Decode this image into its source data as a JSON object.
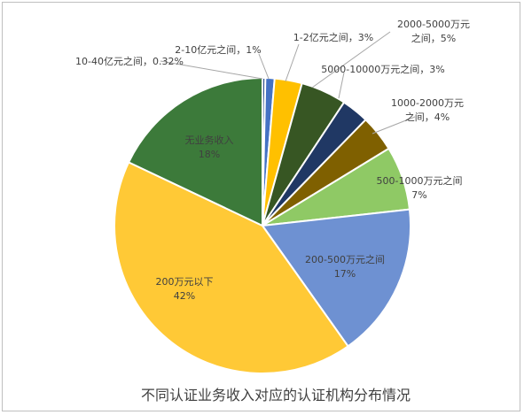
{
  "chart_data": {
    "type": "pie",
    "title": "不同认证业务收入对应的认证机构分布情况",
    "start_angle_deg": 0,
    "direction": "clockwise",
    "slices": [
      {
        "label_lines": [
          "10-40亿元之间，0.32%"
        ],
        "value": 0.32,
        "color": "#2e4e8a"
      },
      {
        "label_lines": [
          "2-10亿元之间，1%"
        ],
        "value": 1,
        "color": "#4472c4"
      },
      {
        "label_lines": [
          "1-2亿元之间，3%"
        ],
        "value": 3,
        "color": "#ffc000"
      },
      {
        "label_lines": [
          "2000-5000万元",
          "之间，5%"
        ],
        "value": 5,
        "color": "#375623"
      },
      {
        "label_lines": [
          "5000-10000万元之间，3%"
        ],
        "value": 3,
        "color": "#203864"
      },
      {
        "label_lines": [
          "1000-2000万元",
          "之间，4%"
        ],
        "value": 4,
        "color": "#7f6000"
      },
      {
        "label_lines": [
          "500-1000万元之间",
          "7%"
        ],
        "value": 7,
        "color": "#8fc965"
      },
      {
        "label_lines": [
          "200-500万元之间",
          "17%"
        ],
        "value": 17,
        "color": "#6e91d2"
      },
      {
        "label_lines": [
          "200万元以下",
          "42%"
        ],
        "value": 42,
        "color": "#ffc936"
      },
      {
        "label_lines": [
          "无业务收入",
          "18%"
        ],
        "value": 18,
        "color": "#3c7a3a"
      }
    ]
  }
}
